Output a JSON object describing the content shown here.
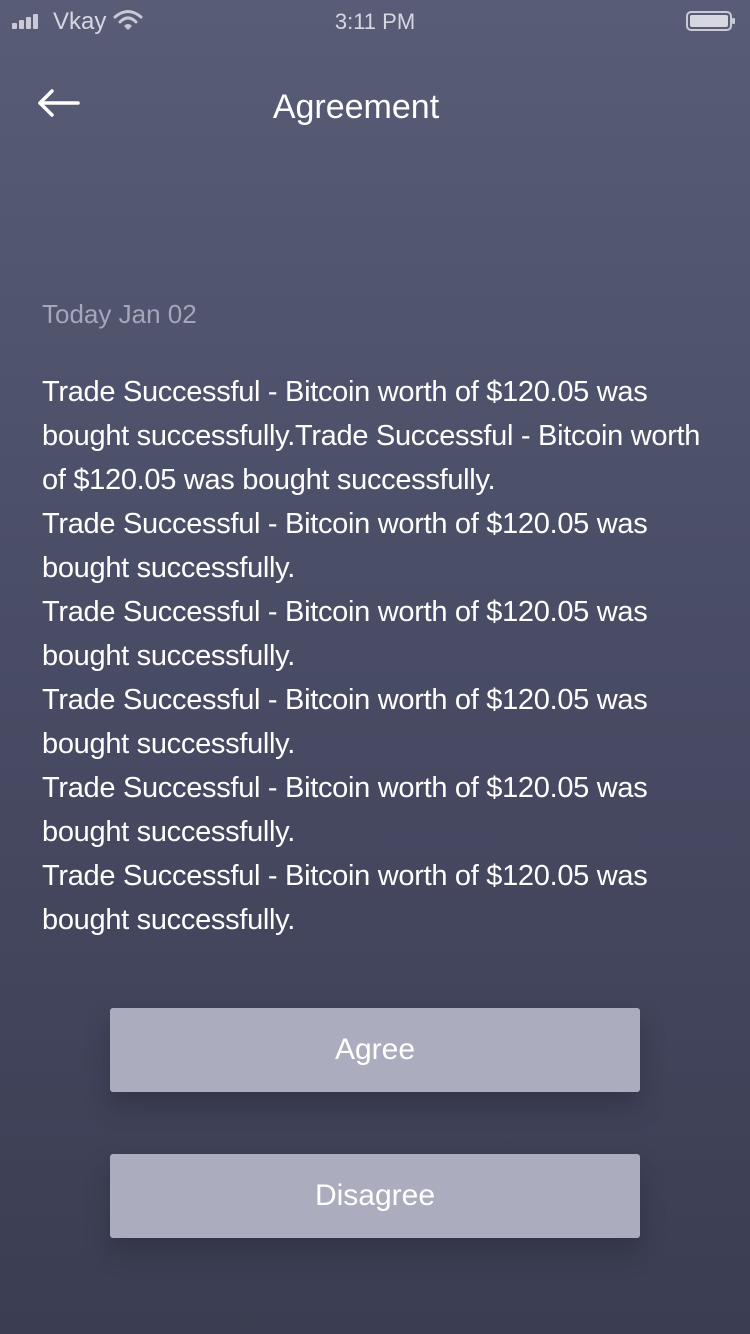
{
  "status_bar": {
    "carrier": "Vkay",
    "time": "3:11 PM",
    "icons": [
      "signal-icon",
      "wifi-icon",
      "battery-icon"
    ]
  },
  "header": {
    "back_icon": "arrow-left-icon",
    "title": "Agreement"
  },
  "content": {
    "date": "Today Jan 02",
    "paragraphs": [
      "Trade Successful - Bitcoin worth of $120.05 was bought successfully.Trade Successful - Bitcoin worth of $120.05 was bought successfully.",
      "Trade Successful - Bitcoin worth of $120.05 was bought successfully.",
      "Trade Successful - Bitcoin worth of $120.05 was bought successfully.",
      "Trade Successful - Bitcoin worth of $120.05 was bought successfully.",
      "Trade Successful - Bitcoin worth of $120.05 was bought successfully.",
      "Trade Successful - Bitcoin worth of $120.05 was bought successfully."
    ]
  },
  "actions": {
    "agree_label": "Agree",
    "disagree_label": "Disagree"
  },
  "colors": {
    "background_top": "#585c76",
    "background_bottom": "#3b3d52",
    "button": "#abacbd",
    "date_text": "#a4a6ba"
  }
}
